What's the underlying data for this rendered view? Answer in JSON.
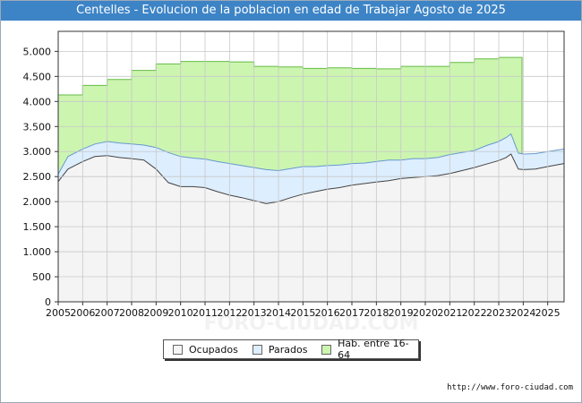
{
  "header": {
    "title": "Centelles - Evolucion de la poblacion en edad de Trabajar Agosto de 2025"
  },
  "footer": {
    "source": "http://www.foro-ciudad.com"
  },
  "watermark": "FORO-CIUDAD.COM",
  "chart_data": {
    "type": "area",
    "title": "Centelles - Evolucion de la poblacion en edad de Trabajar Agosto de 2025",
    "xlabel": "",
    "ylabel": "",
    "x_range": [
      2005,
      2025.67
    ],
    "ylim": [
      0,
      5400
    ],
    "x_ticks": [
      "2005",
      "2006",
      "2007",
      "2008",
      "2009",
      "2010",
      "2011",
      "2012",
      "2013",
      "2014",
      "2015",
      "2016",
      "2017",
      "2018",
      "2019",
      "2020",
      "2021",
      "2022",
      "2023",
      "2024",
      "2025"
    ],
    "y_ticks": [
      {
        "value": 0,
        "label": "0"
      },
      {
        "value": 500,
        "label": "500"
      },
      {
        "value": 1000,
        "label": "1.000"
      },
      {
        "value": 1500,
        "label": "1.500"
      },
      {
        "value": 2000,
        "label": "2.000"
      },
      {
        "value": 2500,
        "label": "2.500"
      },
      {
        "value": 3000,
        "label": "3.000"
      },
      {
        "value": 3500,
        "label": "3.500"
      },
      {
        "value": 4000,
        "label": "4.000"
      },
      {
        "value": 4500,
        "label": "4.500"
      },
      {
        "value": 5000,
        "label": "5.000"
      }
    ],
    "grid": true,
    "legend_position": "bottom-center",
    "series": [
      {
        "name": "Hab. entre 16-64",
        "color_fill": "#ccf5b0",
        "color_line": "#66bb44",
        "x": [
          2005,
          2006,
          2007,
          2008,
          2009,
          2010,
          2011,
          2012,
          2013,
          2014,
          2015,
          2016,
          2017,
          2018,
          2019,
          2020,
          2021,
          2022,
          2023,
          2023.95
        ],
        "values": [
          4130,
          4320,
          4440,
          4620,
          4750,
          4800,
          4800,
          4790,
          4700,
          4690,
          4660,
          4670,
          4660,
          4650,
          4700,
          4700,
          4780,
          4850,
          4880,
          4880
        ]
      },
      {
        "name": "Parados",
        "color_fill": "#ddeeff",
        "color_line": "#6699cc",
        "x": [
          2005,
          2005.4,
          2006,
          2006.5,
          2007,
          2007.5,
          2008,
          2008.5,
          2009,
          2009.5,
          2010,
          2010.5,
          2011,
          2011.5,
          2012,
          2012.5,
          2013,
          2013.5,
          2014,
          2014.5,
          2015,
          2015.5,
          2016,
          2016.5,
          2017,
          2017.5,
          2018,
          2018.5,
          2019,
          2019.5,
          2020,
          2020.5,
          2021,
          2021.5,
          2022,
          2022.5,
          2023,
          2023.3,
          2023.5,
          2023.8,
          2024,
          2024.5,
          2025,
          2025.67
        ],
        "values": [
          2550,
          2900,
          3050,
          3150,
          3200,
          3170,
          3150,
          3130,
          3080,
          2980,
          2900,
          2870,
          2850,
          2800,
          2760,
          2720,
          2680,
          2640,
          2620,
          2660,
          2700,
          2700,
          2720,
          2730,
          2760,
          2770,
          2800,
          2830,
          2830,
          2860,
          2860,
          2880,
          2940,
          2980,
          3020,
          3120,
          3200,
          3280,
          3350,
          2970,
          2950,
          2960,
          3000,
          3050
        ]
      },
      {
        "name": "Ocupados",
        "color_fill": "#f4f4f4",
        "color_line": "#444444",
        "x": [
          2005,
          2005.4,
          2006,
          2006.5,
          2007,
          2007.5,
          2008,
          2008.5,
          2009,
          2009.5,
          2010,
          2010.5,
          2011,
          2011.5,
          2012,
          2012.5,
          2013,
          2013.5,
          2014,
          2014.5,
          2015,
          2015.5,
          2016,
          2016.5,
          2017,
          2017.5,
          2018,
          2018.5,
          2019,
          2019.5,
          2020,
          2020.5,
          2021,
          2021.5,
          2022,
          2022.5,
          2023,
          2023.3,
          2023.5,
          2023.8,
          2024,
          2024.5,
          2025,
          2025.67
        ],
        "values": [
          2400,
          2650,
          2800,
          2900,
          2920,
          2880,
          2860,
          2830,
          2650,
          2380,
          2300,
          2300,
          2280,
          2200,
          2130,
          2080,
          2020,
          1960,
          2000,
          2080,
          2150,
          2200,
          2250,
          2280,
          2330,
          2360,
          2390,
          2420,
          2460,
          2480,
          2500,
          2520,
          2560,
          2620,
          2680,
          2750,
          2820,
          2880,
          2950,
          2650,
          2640,
          2650,
          2700,
          2760
        ]
      }
    ]
  }
}
